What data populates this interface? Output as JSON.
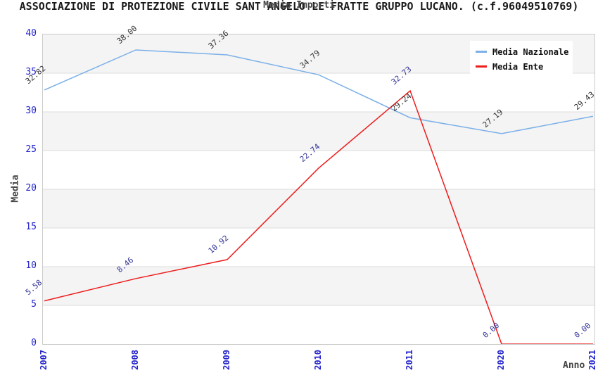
{
  "chart_data": {
    "type": "line",
    "title": "ASSOCIAZIONE DI PROTEZIONE CIVILE SANT ANGELO LE FRATTE GRUPPO LUCANO. (c.f.96049510769)",
    "subtitle": "Media Importi",
    "xlabel": "Anno",
    "ylabel": "Media",
    "categories": [
      "2007",
      "2008",
      "2009",
      "2010",
      "2011",
      "2020",
      "2021"
    ],
    "yticks": [
      0,
      5,
      10,
      15,
      20,
      25,
      30,
      35,
      40
    ],
    "ylim": [
      0,
      40
    ],
    "grid": true,
    "legend_position": "top-right",
    "series": [
      {
        "name": "Media Nazionale",
        "color": "#7cb0e8",
        "label_color": "#333333",
        "values": [
          32.82,
          38.0,
          37.36,
          34.79,
          29.24,
          27.19,
          29.43
        ],
        "labels": [
          "32.82",
          "38.00",
          "37.36",
          "34.79",
          "29.24",
          "27.19",
          "29.43"
        ]
      },
      {
        "name": "Media Ente",
        "color": "#ee1c1c",
        "label_color": "#333399",
        "values": [
          5.58,
          8.46,
          10.92,
          22.74,
          32.73,
          0.0,
          0.0
        ],
        "labels": [
          "5.58",
          "8.46",
          "10.92",
          "22.74",
          "32.73",
          "0.00",
          "0.00"
        ]
      }
    ],
    "colors": {
      "axis_tick_label": "#2222cc",
      "band": "#f4f4f4",
      "gridline": "#dddddd",
      "plot_border": "#cccccc",
      "title_text": "#1a1a1a",
      "axis_title_text": "#444444"
    }
  }
}
